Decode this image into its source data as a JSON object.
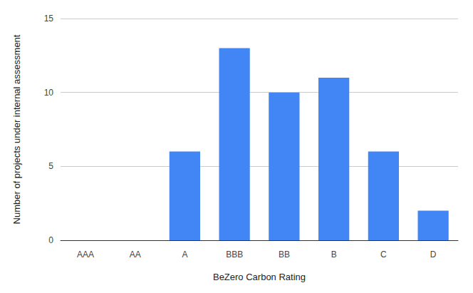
{
  "chart_data": {
    "type": "bar",
    "x_label": "BeZero Carbon Rating",
    "y_label": "Number of projects under internal assessment",
    "categories": [
      "AAA",
      "AA",
      "A",
      "BBB",
      "BB",
      "B",
      "C",
      "D"
    ],
    "values": [
      0,
      0,
      6,
      13,
      10,
      11,
      6,
      2
    ],
    "color": "#4285f4",
    "ylim": [
      0,
      15
    ],
    "yticks": [
      0,
      5,
      10,
      15
    ],
    "grid": true
  }
}
